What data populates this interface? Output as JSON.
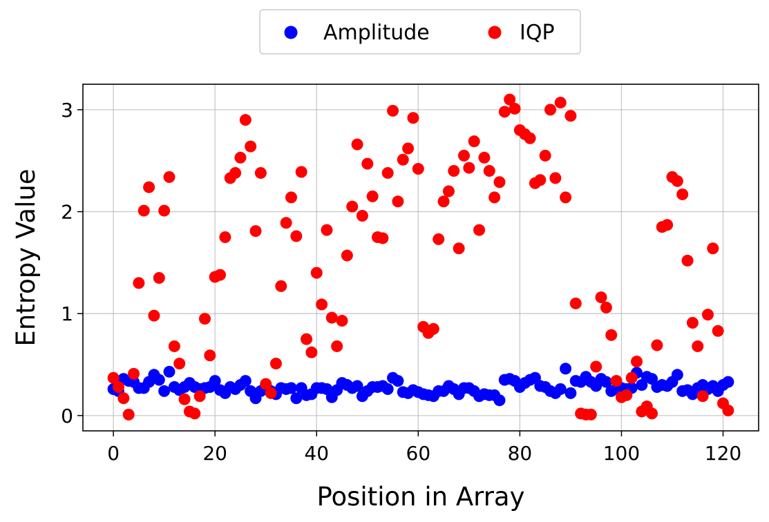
{
  "chart_data": {
    "type": "scatter",
    "xlabel": "Position in Array",
    "ylabel": "Entropy Value",
    "xlim": [
      -6,
      127
    ],
    "ylim": [
      -0.15,
      3.25
    ],
    "xticks": [
      0,
      20,
      40,
      60,
      80,
      100,
      120
    ],
    "yticks": [
      0,
      1,
      2,
      3
    ],
    "grid": true,
    "legend_position": "top-center-outside",
    "series": [
      {
        "name": "Amplitude",
        "color": "#0000ff",
        "x": [
          0,
          1,
          2,
          3,
          4,
          5,
          6,
          7,
          8,
          9,
          10,
          11,
          12,
          13,
          14,
          15,
          16,
          17,
          18,
          19,
          20,
          21,
          22,
          23,
          24,
          25,
          26,
          27,
          28,
          29,
          30,
          31,
          32,
          33,
          34,
          35,
          36,
          37,
          38,
          39,
          40,
          41,
          42,
          43,
          44,
          45,
          46,
          47,
          48,
          49,
          50,
          51,
          52,
          53,
          54,
          55,
          56,
          57,
          58,
          59,
          60,
          61,
          62,
          63,
          64,
          65,
          66,
          67,
          68,
          69,
          70,
          71,
          72,
          73,
          74,
          75,
          76,
          77,
          78,
          79,
          80,
          81,
          82,
          83,
          84,
          85,
          86,
          87,
          88,
          89,
          90,
          91,
          92,
          93,
          94,
          95,
          96,
          97,
          98,
          99,
          100,
          101,
          102,
          103,
          104,
          105,
          106,
          107,
          108,
          109,
          110,
          111,
          112,
          113,
          114,
          115,
          116,
          117,
          118,
          119,
          120,
          121
        ],
        "y": [
          0.26,
          0.24,
          0.36,
          0.34,
          0.33,
          0.27,
          0.27,
          0.33,
          0.4,
          0.35,
          0.24,
          0.43,
          0.28,
          0.25,
          0.28,
          0.32,
          0.28,
          0.26,
          0.27,
          0.28,
          0.34,
          0.25,
          0.22,
          0.28,
          0.26,
          0.3,
          0.34,
          0.24,
          0.17,
          0.24,
          0.3,
          0.24,
          0.21,
          0.27,
          0.26,
          0.27,
          0.17,
          0.27,
          0.2,
          0.21,
          0.27,
          0.27,
          0.26,
          0.18,
          0.25,
          0.32,
          0.3,
          0.27,
          0.29,
          0.19,
          0.24,
          0.28,
          0.28,
          0.29,
          0.26,
          0.37,
          0.34,
          0.23,
          0.22,
          0.25,
          0.23,
          0.21,
          0.2,
          0.19,
          0.24,
          0.24,
          0.29,
          0.26,
          0.21,
          0.27,
          0.27,
          0.24,
          0.19,
          0.21,
          0.2,
          0.2,
          0.15,
          0.35,
          0.36,
          0.34,
          0.28,
          0.32,
          0.35,
          0.37,
          0.29,
          0.28,
          0.24,
          0.22,
          0.26,
          0.46,
          0.22,
          0.34,
          0.33,
          0.38,
          0.33,
          0.29,
          0.36,
          0.33,
          0.24,
          0.26,
          0.27,
          0.26,
          0.27,
          0.42,
          0.3,
          0.38,
          0.36,
          0.28,
          0.3,
          0.29,
          0.33,
          0.4,
          0.24,
          0.25,
          0.21,
          0.27,
          0.3,
          0.26,
          0.29,
          0.24,
          0.3,
          0.33
        ]
      },
      {
        "name": "IQP",
        "color": "#ff0000",
        "x": [
          0,
          1,
          2,
          3,
          4,
          5,
          6,
          7,
          8,
          9,
          10,
          11,
          12,
          13,
          14,
          15,
          16,
          17,
          18,
          19,
          20,
          21,
          22,
          23,
          24,
          25,
          26,
          27,
          28,
          29,
          30,
          31,
          32,
          33,
          34,
          35,
          36,
          37,
          38,
          39,
          40,
          41,
          42,
          43,
          44,
          45,
          46,
          47,
          48,
          49,
          50,
          51,
          52,
          53,
          54,
          55,
          56,
          57,
          58,
          59,
          60,
          61,
          62,
          63,
          64,
          65,
          66,
          67,
          68,
          69,
          70,
          71,
          72,
          73,
          74,
          75,
          76,
          77,
          78,
          79,
          80,
          81,
          82,
          83,
          84,
          85,
          86,
          87,
          88,
          89,
          90,
          91,
          92,
          93,
          94,
          95,
          96,
          97,
          98,
          99,
          100,
          101,
          102,
          103,
          104,
          105,
          106,
          107,
          108,
          109,
          110,
          111,
          112,
          113,
          114,
          115,
          116,
          117,
          118,
          119,
          120,
          121
        ],
        "y": [
          0.37,
          0.28,
          0.17,
          0.01,
          0.41,
          1.3,
          2.01,
          2.24,
          0.98,
          1.35,
          2.01,
          2.34,
          0.68,
          0.51,
          0.16,
          0.04,
          0.02,
          0.19,
          0.95,
          0.59,
          1.36,
          1.38,
          1.75,
          2.33,
          2.38,
          2.53,
          2.9,
          2.64,
          1.81,
          2.38,
          0.31,
          0.22,
          0.51,
          1.27,
          1.89,
          2.14,
          1.76,
          2.39,
          0.75,
          0.62,
          1.4,
          1.09,
          1.82,
          0.96,
          0.68,
          0.93,
          1.57,
          2.05,
          2.66,
          1.96,
          2.47,
          2.15,
          1.75,
          1.74,
          2.38,
          2.99,
          2.1,
          2.51,
          2.62,
          2.92,
          2.42,
          0.87,
          0.81,
          0.85,
          1.73,
          2.1,
          2.2,
          2.4,
          1.64,
          2.55,
          2.43,
          2.69,
          1.82,
          2.53,
          2.4,
          2.14,
          2.29,
          2.98,
          3.1,
          3.01,
          2.8,
          2.76,
          2.72,
          2.28,
          2.31,
          2.55,
          3.0,
          2.33,
          3.07,
          2.14,
          2.94,
          1.1,
          0.02,
          0.01,
          0.01,
          0.48,
          1.16,
          1.06,
          0.79,
          0.34,
          0.18,
          0.2,
          0.37,
          0.53,
          0.04,
          0.09,
          0.02,
          0.69,
          1.85,
          1.87,
          2.34,
          2.3,
          2.17,
          1.52,
          0.91,
          0.68,
          0.19,
          0.99,
          1.64,
          0.83,
          0.12,
          0.05
        ]
      }
    ]
  }
}
